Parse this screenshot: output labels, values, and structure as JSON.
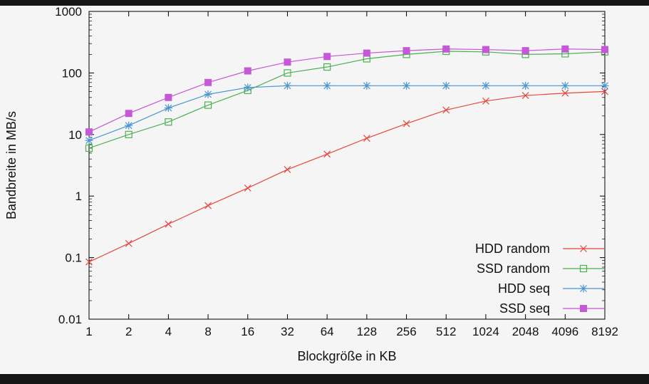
{
  "window": {
    "background": "#f5f5f5",
    "top_bar_color": "#151515",
    "bottom_bar_color": "#151515"
  },
  "chart_data": {
    "type": "line",
    "title": "",
    "xlabel": "Blockgröße in KB",
    "ylabel": "Bandbreite in MB/s",
    "xscale": "log2",
    "yscale": "log10",
    "xlim": [
      1,
      8192
    ],
    "ylim": [
      0.01,
      1000
    ],
    "grid": false,
    "legend_position": "bottom-right",
    "xticks": [
      1,
      2,
      4,
      8,
      16,
      32,
      64,
      128,
      256,
      512,
      1024,
      2048,
      4096,
      8192
    ],
    "xtick_labels": [
      "1",
      "2",
      "4",
      "8",
      "16",
      "32",
      "64",
      "128",
      "256",
      "512",
      "1024",
      "2048",
      "4096",
      "8192"
    ],
    "yticks": [
      0.01,
      0.1,
      1,
      10,
      100,
      1000
    ],
    "ytick_labels": [
      "0.01",
      "0.1",
      "1",
      "10",
      "100",
      "1000"
    ],
    "x": [
      1,
      2,
      4,
      8,
      16,
      32,
      64,
      128,
      256,
      512,
      1024,
      2048,
      4096,
      8192
    ],
    "series": [
      {
        "name": "HDD random",
        "color": "#e2483d",
        "marker": "x",
        "values": [
          0.085,
          0.17,
          0.35,
          0.7,
          1.35,
          2.7,
          4.8,
          8.7,
          15,
          25,
          35,
          43,
          47,
          50
        ]
      },
      {
        "name": "SSD random",
        "color": "#4cb050",
        "marker": "open-square",
        "values": [
          6,
          10,
          16,
          30,
          52,
          100,
          125,
          170,
          200,
          225,
          220,
          200,
          205,
          220
        ]
      },
      {
        "name": "HDD seq",
        "color": "#4a95d0",
        "marker": "asterisk",
        "values": [
          8,
          14,
          27,
          45,
          58,
          62,
          62,
          62,
          62,
          62,
          62,
          62,
          62,
          62
        ]
      },
      {
        "name": "SSD seq",
        "color": "#c558d6",
        "marker": "filled-square",
        "values": [
          11,
          22,
          40,
          70,
          108,
          150,
          185,
          210,
          230,
          245,
          240,
          230,
          245,
          240
        ]
      }
    ]
  }
}
